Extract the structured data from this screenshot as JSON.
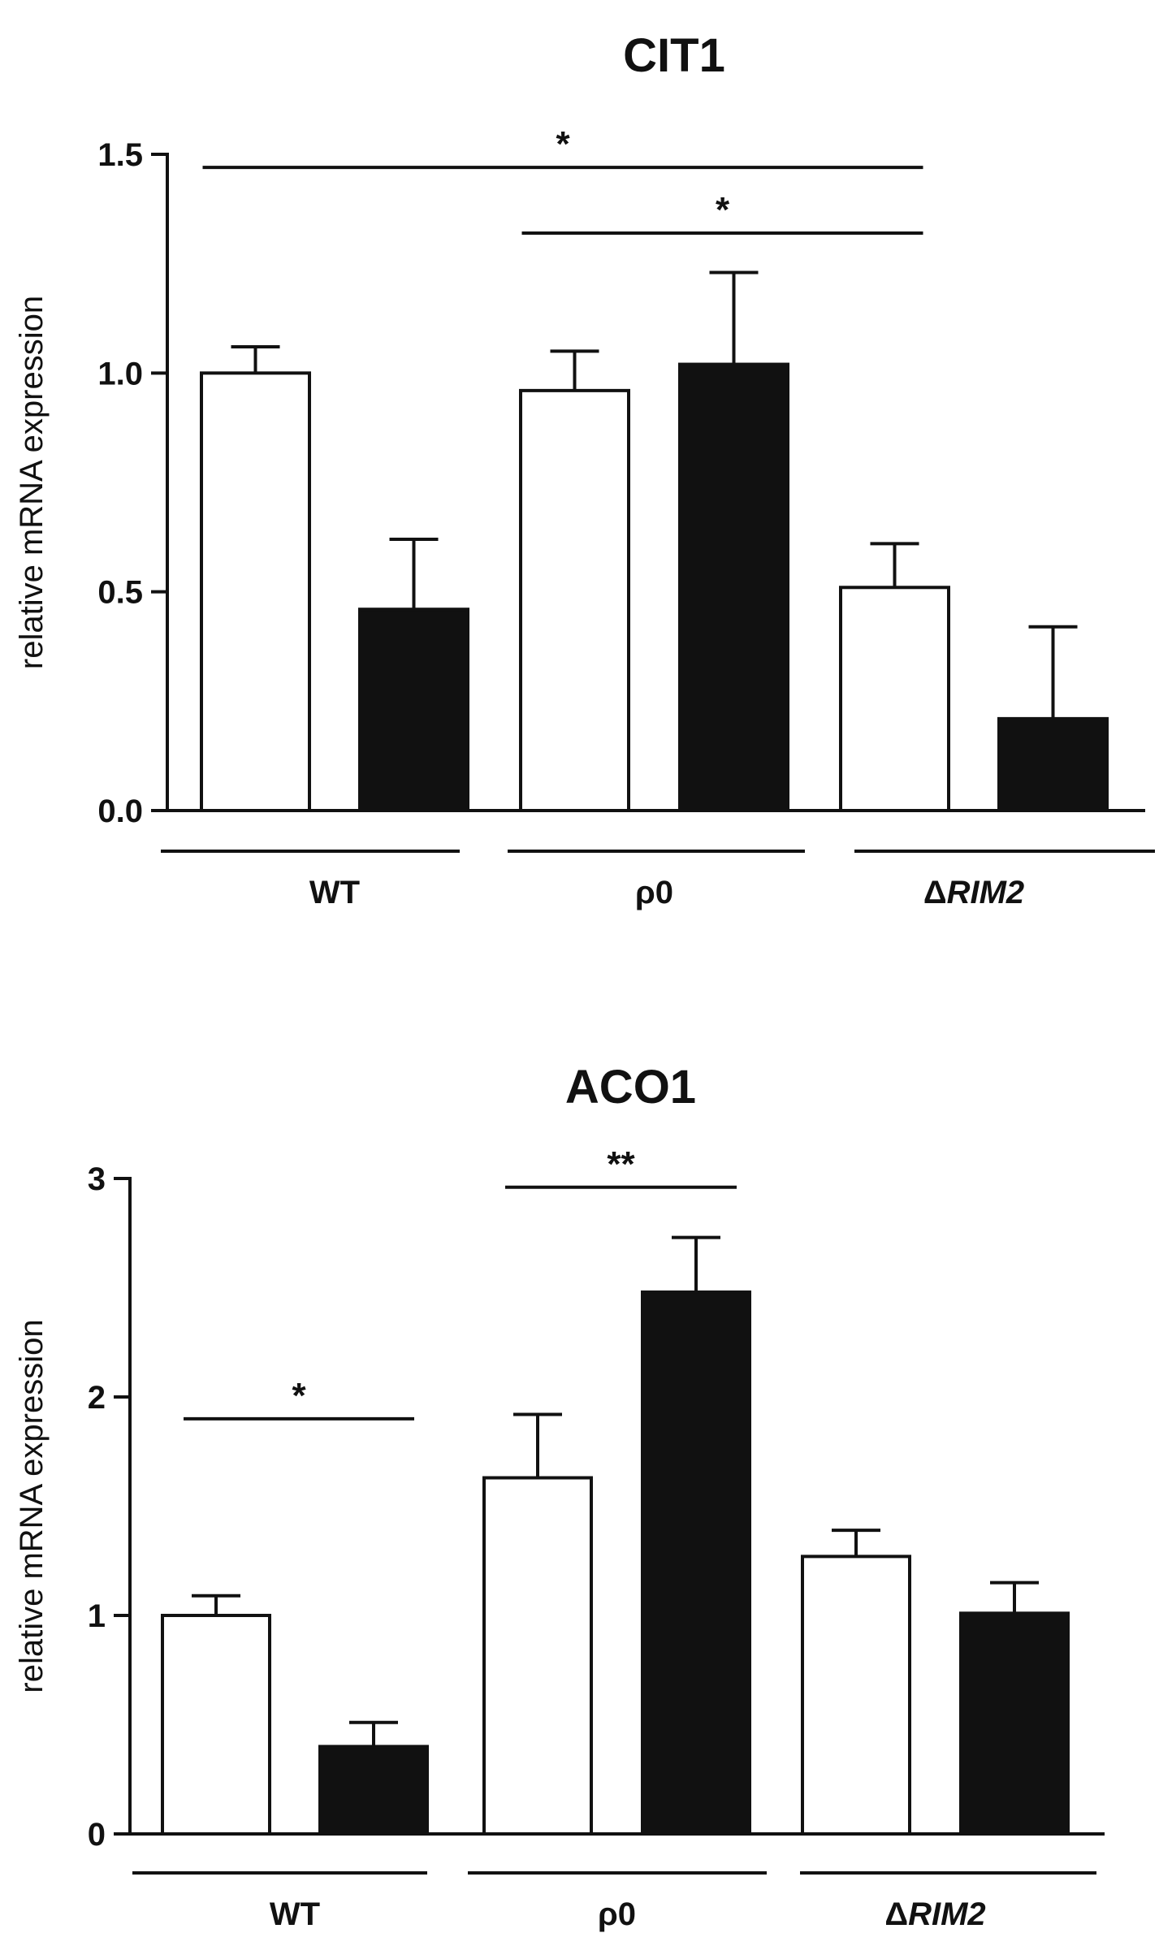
{
  "chart_data": [
    {
      "type": "bar",
      "title": "CIT1",
      "ylabel": "relative mRNA expression",
      "xlabel": "",
      "ylim": [
        0,
        1.5
      ],
      "yticks": [
        "0.0",
        "0.5",
        "1.0",
        "1.5"
      ],
      "ytick_values": [
        0,
        0.5,
        1.0,
        1.5
      ],
      "groups": [
        {
          "label": "WT",
          "italic_part": ""
        },
        {
          "label": "ρ0",
          "italic_part": ""
        },
        {
          "label": "Δ",
          "italic_part": "RIM2"
        }
      ],
      "series": [
        {
          "name": "open",
          "color": "#ffffff",
          "values": [
            1.0,
            0.96,
            0.51
          ],
          "errors": [
            0.06,
            0.09,
            0.1
          ]
        },
        {
          "name": "filled",
          "color": "#111111",
          "values": [
            0.46,
            1.02,
            0.21
          ],
          "errors": [
            0.16,
            0.21,
            0.21
          ]
        }
      ],
      "significance": [
        {
          "from": "WT:open",
          "to": "ΔRIM2:open",
          "label": "*",
          "level": 1.47
        },
        {
          "from": "ρ0:open",
          "to": "ΔRIM2:open",
          "label": "*",
          "level": 1.32
        }
      ]
    },
    {
      "type": "bar",
      "title": "ACO1",
      "ylabel": "relative mRNA expression",
      "xlabel": "",
      "ylim": [
        0,
        3
      ],
      "yticks": [
        "0",
        "1",
        "2",
        "3"
      ],
      "ytick_values": [
        0,
        1,
        2,
        3
      ],
      "groups": [
        {
          "label": "WT",
          "italic_part": ""
        },
        {
          "label": "ρ0",
          "italic_part": ""
        },
        {
          "label": "Δ",
          "italic_part": "RIM2"
        }
      ],
      "series": [
        {
          "name": "open",
          "color": "#ffffff",
          "values": [
            1.0,
            1.63,
            1.27
          ],
          "errors": [
            0.09,
            0.29,
            0.12
          ]
        },
        {
          "name": "filled",
          "color": "#111111",
          "values": [
            0.4,
            2.48,
            1.01
          ],
          "errors": [
            0.11,
            0.25,
            0.14
          ]
        }
      ],
      "significance": [
        {
          "from": "WT:open",
          "to": "WT:filled",
          "label": "*",
          "level": 1.9
        },
        {
          "from": "ρ0:open",
          "to": "ρ0:filled",
          "label": "**",
          "level": 2.96
        }
      ]
    }
  ]
}
